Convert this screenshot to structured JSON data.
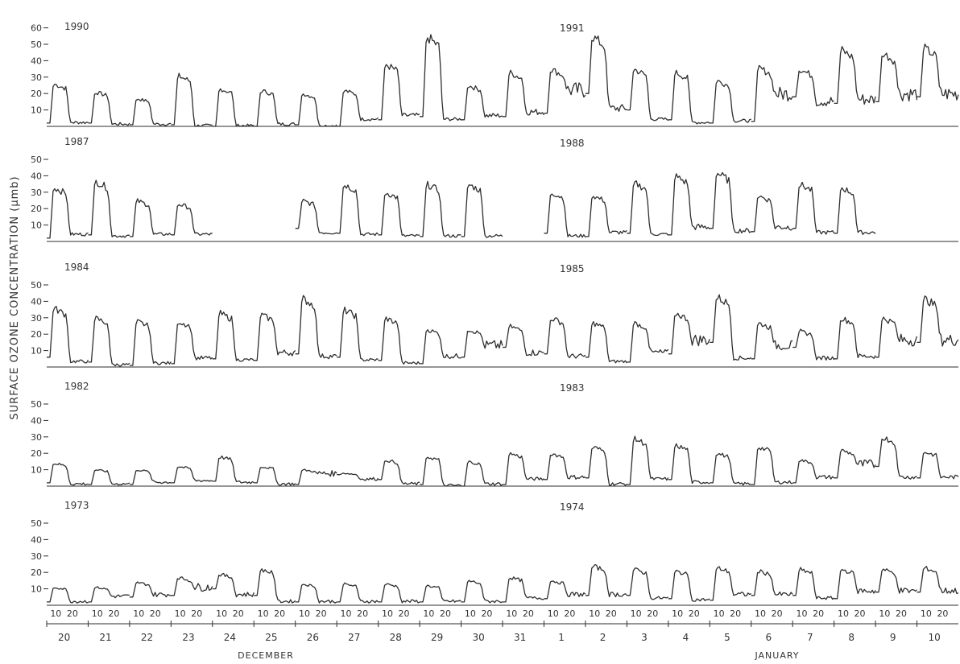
{
  "figure": {
    "ylabel": "SURFACE  OZONE  CONCENTRATION  (μmb)",
    "hour_ticks": [
      "10",
      "20"
    ],
    "month_labels": [
      "DECEMBER",
      "JANUARY"
    ],
    "day_labels": [
      "20",
      "21",
      "22",
      "23",
      "24",
      "25",
      "26",
      "27",
      "28",
      "29",
      "30",
      "31",
      "1",
      "2",
      "3",
      "4",
      "5",
      "6",
      "7",
      "8",
      "9",
      "10"
    ]
  },
  "chart_data": [
    {
      "type": "line",
      "panel_years": [
        "1990",
        "1991"
      ],
      "ylabel": "SURFACE OZONE CONCENTRATION (μmb)",
      "yticks": [
        10,
        20,
        30,
        40,
        50,
        60
      ],
      "ylim": [
        0,
        60
      ],
      "x": [
        "Dec 20 10h",
        "Dec 21 10h",
        "Dec 22 10h",
        "Dec 23 10h",
        "Dec 24 10h",
        "Dec 25 10h",
        "Dec 26 10h",
        "Dec 27 10h",
        "Dec 28 10h",
        "Dec 29 10h",
        "Dec 30 10h",
        "Dec 31 10h",
        "Jan 1 10h",
        "Jan 2 10h",
        "Jan 3 10h",
        "Jan 4 10h",
        "Jan 5 10h",
        "Jan 6 10h",
        "Jan 7 10h",
        "Jan 8 10h",
        "Jan 9 10h",
        "Jan 10 10h"
      ],
      "daily_peak": [
        26,
        21,
        17,
        31,
        23,
        22,
        20,
        22,
        38,
        55,
        25,
        33,
        35,
        55,
        35,
        33,
        28,
        36,
        35,
        47,
        45,
        48
      ],
      "night_level": [
        2,
        2,
        1,
        1,
        0,
        0,
        1,
        0,
        4,
        6,
        4,
        6,
        8,
        20,
        10,
        4,
        2,
        3,
        18,
        14,
        15,
        18
      ],
      "gaps": []
    },
    {
      "type": "line",
      "panel_years": [
        "1987",
        "1988"
      ],
      "ylabel": "SURFACE OZONE CONCENTRATION (μmb)",
      "yticks": [
        10,
        20,
        30,
        40,
        50
      ],
      "ylim": [
        0,
        50
      ],
      "x": [
        "Dec 20 10h",
        "Dec 21 10h",
        "Dec 22 10h",
        "Dec 23 10h",
        "Dec 24 10h",
        "Dec 25 10h",
        "Dec 26 10h",
        "Dec 27 10h",
        "Dec 28 10h",
        "Dec 29 10h",
        "Dec 30 10h",
        "Dec 31 10h",
        "Jan 1 10h",
        "Jan 2 10h",
        "Jan 3 10h",
        "Jan 4 10h",
        "Jan 5 10h",
        "Jan 6 10h",
        "Jan 7 10h",
        "Jan 8 10h",
        "Jan 9 10h",
        "Jan 10 10h"
      ],
      "daily_peak": [
        33,
        37,
        25,
        23,
        null,
        null,
        25,
        35,
        30,
        35,
        35,
        null,
        30,
        28,
        36,
        40,
        42,
        28,
        35,
        33,
        null,
        null
      ],
      "night_level": [
        2,
        4,
        3,
        4,
        null,
        null,
        8,
        5,
        4,
        3,
        3,
        null,
        5,
        3,
        5,
        4,
        8,
        6,
        8,
        5,
        null,
        null
      ],
      "gaps": [
        [
          "Dec 24",
          "Dec 26"
        ],
        [
          "Dec 31",
          "Jan 1"
        ],
        [
          "Jan 9",
          "Jan 10"
        ]
      ]
    },
    {
      "type": "line",
      "panel_years": [
        "1984",
        "1985"
      ],
      "ylabel": "SURFACE OZONE CONCENTRATION (μmb)",
      "yticks": [
        10,
        20,
        30,
        40,
        50
      ],
      "ylim": [
        0,
        50
      ],
      "x": [
        "Dec 20 10h",
        "Dec 21 10h",
        "Dec 22 10h",
        "Dec 23 10h",
        "Dec 24 10h",
        "Dec 25 10h",
        "Dec 26 10h",
        "Dec 27 10h",
        "Dec 28 10h",
        "Dec 29 10h",
        "Dec 30 10h",
        "Dec 31 10h",
        "Jan 1 10h",
        "Jan 2 10h",
        "Jan 3 10h",
        "Jan 4 10h",
        "Jan 5 10h",
        "Jan 6 10h",
        "Jan 7 10h",
        "Jan 8 10h",
        "Jan 9 10h",
        "Jan 10 10h"
      ],
      "daily_peak": [
        36,
        30,
        28,
        28,
        33,
        32,
        42,
        35,
        30,
        23,
        23,
        25,
        30,
        27,
        27,
        33,
        43,
        27,
        22,
        30,
        30,
        42
      ],
      "night_level": [
        6,
        3,
        1,
        2,
        5,
        4,
        8,
        6,
        4,
        2,
        6,
        12,
        8,
        6,
        3,
        8,
        15,
        5,
        12,
        5,
        6,
        15
      ],
      "gaps": []
    },
    {
      "type": "line",
      "panel_years": [
        "1982",
        "1983"
      ],
      "ylabel": "SURFACE OZONE CONCENTRATION (μmb)",
      "yticks": [
        10,
        20,
        30,
        40,
        50
      ],
      "ylim": [
        0,
        50
      ],
      "x": [
        "Dec 20 10h",
        "Dec 21 10h",
        "Dec 22 10h",
        "Dec 23 10h",
        "Dec 24 10h",
        "Dec 25 10h",
        "Dec 26 10h",
        "Dec 27 10h",
        "Dec 28 10h",
        "Dec 29 10h",
        "Dec 30 10h",
        "Dec 31 10h",
        "Jan 1 10h",
        "Jan 2 10h",
        "Jan 3 10h",
        "Jan 4 10h",
        "Jan 5 10h",
        "Jan 6 10h",
        "Jan 7 10h",
        "Jan 8 10h",
        "Jan 9 10h",
        "Jan 10 10h"
      ],
      "daily_peak": [
        14,
        10,
        10,
        12,
        18,
        12,
        10,
        8,
        16,
        18,
        15,
        20,
        20,
        24,
        29,
        25,
        20,
        24,
        16,
        22,
        30,
        21
      ],
      "night_level": [
        2,
        1,
        1,
        2,
        3,
        2,
        1,
        7,
        4,
        1,
        0,
        1,
        4,
        5,
        1,
        4,
        2,
        1,
        2,
        5,
        12,
        5
      ],
      "gaps": []
    },
    {
      "type": "line",
      "panel_years": [
        "1973",
        "1974"
      ],
      "ylabel": "SURFACE OZONE CONCENTRATION (μmb)",
      "yticks": [
        10,
        20,
        30,
        40,
        50
      ],
      "ylim": [
        0,
        50
      ],
      "x": [
        "Dec 20 10h",
        "Dec 21 10h",
        "Dec 22 10h",
        "Dec 23 10h",
        "Dec 24 10h",
        "Dec 25 10h",
        "Dec 26 10h",
        "Dec 27 10h",
        "Dec 28 10h",
        "Dec 29 10h",
        "Dec 30 10h",
        "Dec 31 10h",
        "Jan 1 10h",
        "Jan 2 10h",
        "Jan 3 10h",
        "Jan 4 10h",
        "Jan 5 10h",
        "Jan 6 10h",
        "Jan 7 10h",
        "Jan 8 10h",
        "Jan 9 10h",
        "Jan 10 10h"
      ],
      "daily_peak": [
        11,
        11,
        14,
        17,
        19,
        22,
        13,
        13,
        13,
        12,
        15,
        17,
        15,
        24,
        22,
        21,
        23,
        21,
        22,
        22,
        22,
        23
      ],
      "night_level": [
        2,
        2,
        5,
        6,
        10,
        6,
        2,
        2,
        2,
        2,
        2,
        2,
        4,
        6,
        6,
        4,
        3,
        6,
        6,
        4,
        8,
        8
      ],
      "gaps": []
    }
  ]
}
